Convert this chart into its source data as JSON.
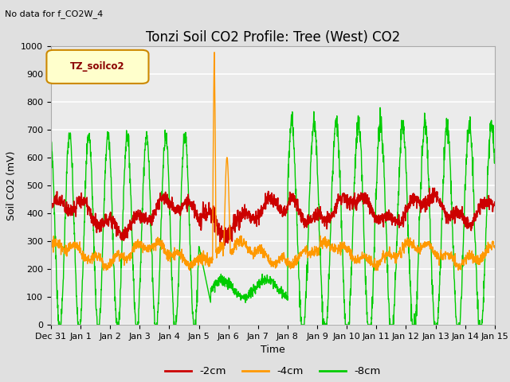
{
  "title": "Tonzi Soil CO2 Profile: Tree (West) CO2",
  "subtitle": "No data for f_CO2W_4",
  "xlabel": "Time",
  "ylabel": "Soil CO2 (mV)",
  "ylim": [
    0,
    1000
  ],
  "legend_label": "TZ_soilco2",
  "series_labels": [
    "-2cm",
    "-4cm",
    "-8cm"
  ],
  "series_colors": [
    "#cc0000",
    "#ff9900",
    "#00cc00"
  ],
  "background_color": "#e0e0e0",
  "plot_bg_color": "#ebebeb",
  "x_tick_labels": [
    "Dec 31",
    "Jan 1",
    "Jan 2",
    "Jan 3",
    "Jan 4",
    "Jan 5",
    "Jan 6",
    "Jan 7",
    "Jan 8",
    "Jan 9",
    "Jan 10",
    "Jan 11",
    "Jan 12",
    "Jan 13",
    "Jan 14",
    "Jan 15"
  ],
  "grid_color": "#ffffff",
  "title_fontsize": 12,
  "axis_fontsize": 9,
  "tick_fontsize": 8,
  "legend_box_color": "#ffffcc",
  "legend_box_edge": "#cc8800",
  "legend_text_color": "#8b0000"
}
